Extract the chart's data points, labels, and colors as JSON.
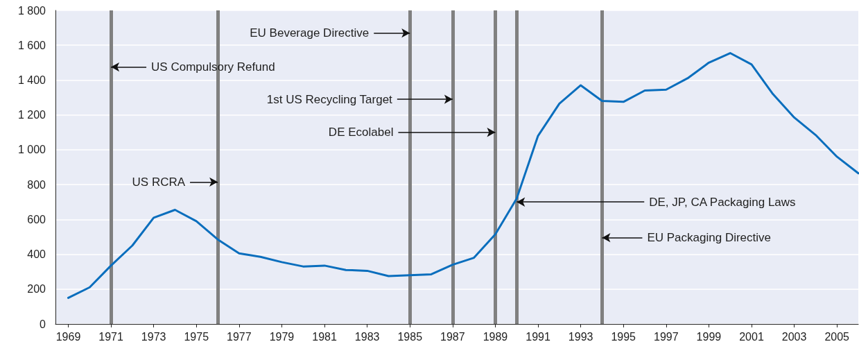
{
  "chart_data": {
    "type": "line",
    "color": "#0a6ebd",
    "x": [
      1969,
      1970,
      1971,
      1972,
      1973,
      1974,
      1975,
      1976,
      1977,
      1978,
      1979,
      1980,
      1981,
      1982,
      1983,
      1984,
      1985,
      1986,
      1987,
      1988,
      1989,
      1990,
      1991,
      1992,
      1993,
      1994,
      1995,
      1996,
      1997,
      1998,
      1999,
      2000,
      2001,
      2002,
      2003,
      2004,
      2005,
      2006
    ],
    "values": [
      150,
      210,
      335,
      450,
      610,
      655,
      590,
      485,
      405,
      385,
      355,
      330,
      335,
      310,
      305,
      275,
      280,
      285,
      340,
      380,
      515,
      720,
      1080,
      1265,
      1370,
      1280,
      1275,
      1340,
      1345,
      1410,
      1500,
      1555,
      1490,
      1320,
      1185,
      1085,
      960,
      865
    ],
    "xlim": [
      1968.4,
      2006
    ],
    "xticks": [
      1969,
      1971,
      1973,
      1975,
      1977,
      1979,
      1981,
      1983,
      1985,
      1987,
      1989,
      1991,
      1993,
      1995,
      1997,
      1999,
      2001,
      2003,
      2005
    ],
    "ylim": [
      0,
      1800
    ],
    "yticks": [
      0,
      200,
      400,
      600,
      800,
      {
        "value": 1000,
        "label": "1 000"
      },
      {
        "value": 1200,
        "label": "1 200"
      },
      {
        "value": 1400,
        "label": "1 400"
      },
      {
        "value": 1600,
        "label": "1 600"
      },
      {
        "value": 1800,
        "label": "1 800"
      }
    ],
    "grid": "y",
    "ref_lines": [
      {
        "axis": "x",
        "value": 1971,
        "color": "#808080"
      },
      {
        "axis": "x",
        "value": 1976,
        "color": "#808080"
      },
      {
        "axis": "x",
        "value": 1985,
        "color": "#808080"
      },
      {
        "axis": "x",
        "value": 1987,
        "color": "#808080"
      },
      {
        "axis": "x",
        "value": 1989,
        "color": "#808080"
      },
      {
        "axis": "x",
        "value": 1990,
        "color": "#808080"
      },
      {
        "axis": "x",
        "value": 1994,
        "color": "#808080"
      }
    ],
    "annotations": [
      {
        "text": "US Compulsory Refund",
        "x": 1971,
        "y": 1475
      },
      {
        "text": "US RCRA",
        "x": 1976,
        "y": 815
      },
      {
        "text": "EU Beverage Directive",
        "x": 1985,
        "y": 1670
      },
      {
        "text": "1st US Recycling Target",
        "x": 1987,
        "y": 1290
      },
      {
        "text": "DE Ecolabel",
        "x": 1989,
        "y": 1100
      },
      {
        "text": "DE, JP, CA Packaging Laws",
        "x": 1990,
        "y": 700
      },
      {
        "text": "EU Packaging Directive",
        "x": 1994,
        "y": 495
      }
    ]
  }
}
